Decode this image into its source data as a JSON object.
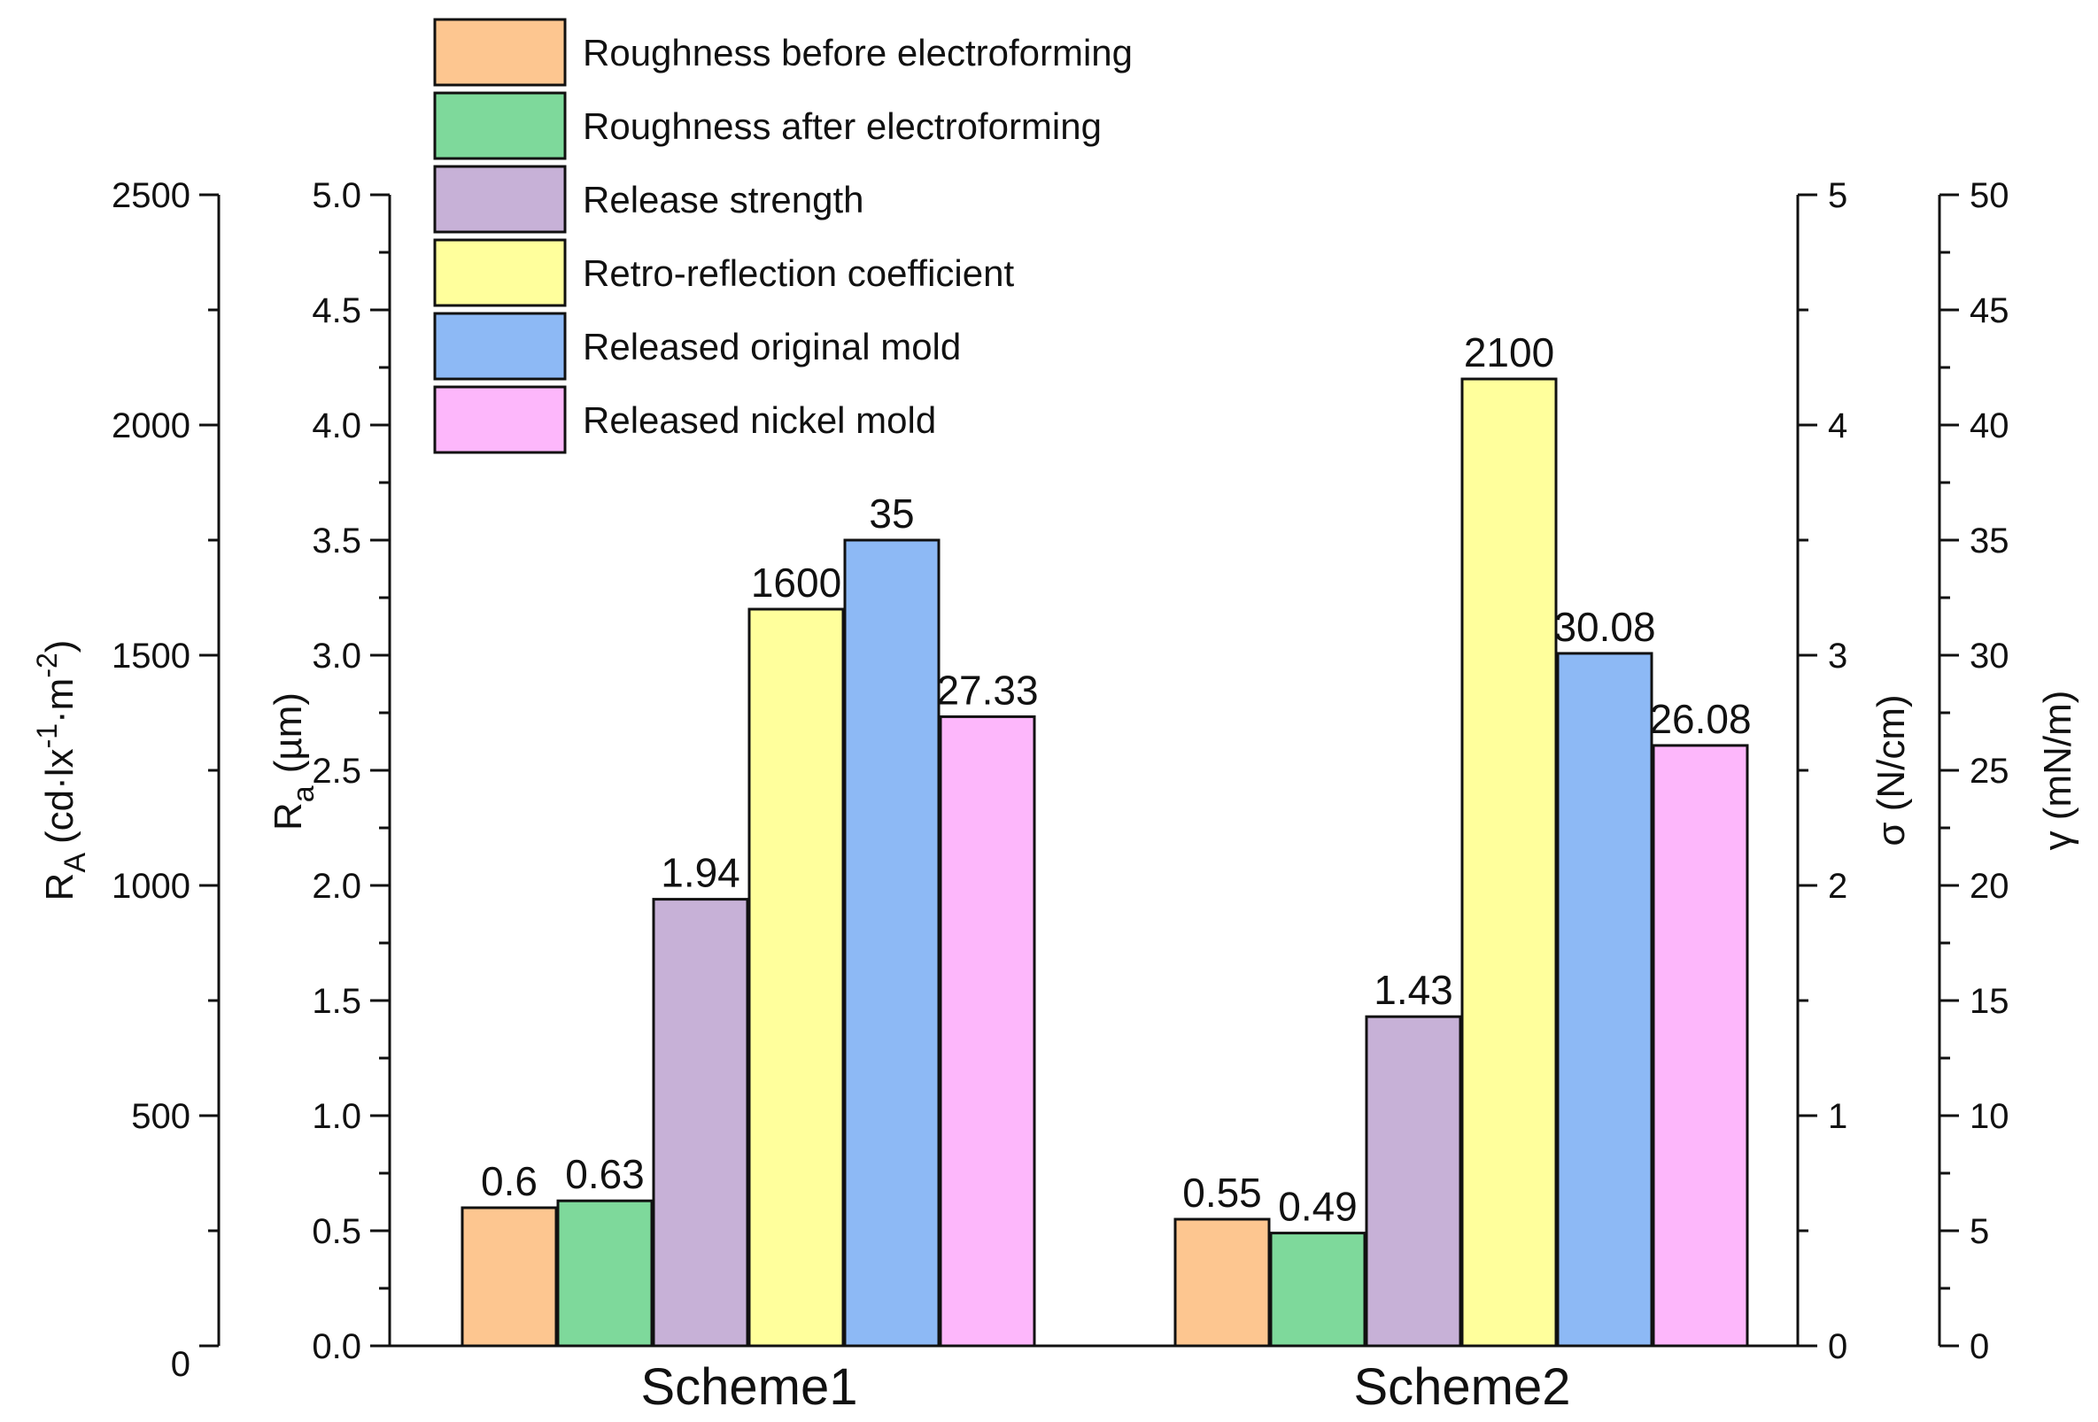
{
  "chart_data": {
    "type": "bar",
    "categories": [
      "Scheme1",
      "Scheme2"
    ],
    "series": [
      {
        "name": "Roughness before electroforming",
        "axis": "Ra",
        "color": "#FDC690",
        "values": [
          0.6,
          0.55
        ],
        "labels": [
          "0.6",
          "0.55"
        ]
      },
      {
        "name": "Roughness after electroforming",
        "axis": "Ra",
        "color": "#7ED99B",
        "values": [
          0.63,
          0.49
        ],
        "labels": [
          "0.63",
          "0.49"
        ]
      },
      {
        "name": "Release strength",
        "axis": "sigma",
        "color": "#C7B1D7",
        "values": [
          1.94,
          1.43
        ],
        "labels": [
          "1.94",
          "1.43"
        ]
      },
      {
        "name": "Retro-reflection coefficient",
        "axis": "RA",
        "color": "#FFFF9C",
        "values": [
          1600,
          2100
        ],
        "labels": [
          "1600",
          "2100"
        ]
      },
      {
        "name": "Released original mold",
        "axis": "gamma",
        "color": "#8DB9F5",
        "values": [
          35,
          30.08
        ],
        "labels": [
          "35",
          "30.08"
        ]
      },
      {
        "name": "Released nickel mold",
        "axis": "gamma",
        "color": "#FDB7FB",
        "values": [
          27.33,
          26.08
        ],
        "labels": [
          "27.33",
          "26.08"
        ]
      }
    ],
    "axes": {
      "RA": {
        "title_main": "R",
        "title_sub": "A",
        "title_unit": "(cd·lx",
        "title_sup1": "-1",
        "title_mid": "·m",
        "title_sup2": "-2",
        "title_close": ")",
        "ylim": [
          0,
          2500
        ],
        "ticks": [
          "0",
          "500",
          "1000",
          "1500",
          "2000",
          "2500"
        ]
      },
      "Ra": {
        "title_main": "R",
        "title_sub": "a",
        "title_unit": "(µm)",
        "ylim": [
          0,
          5
        ],
        "ticks": [
          "0.0",
          "0.5",
          "1.0",
          "1.5",
          "2.0",
          "2.5",
          "3.0",
          "3.5",
          "4.0",
          "4.5",
          "5.0"
        ]
      },
      "sigma": {
        "title": "σ (N/cm)",
        "ylim": [
          0,
          5
        ],
        "ticks": [
          "0",
          "1",
          "2",
          "3",
          "4",
          "5"
        ]
      },
      "gamma": {
        "title": "γ (mN/m)",
        "ylim": [
          0,
          50
        ],
        "ticks": [
          "0",
          "5",
          "10",
          "15",
          "20",
          "25",
          "30",
          "35",
          "40",
          "45",
          "50"
        ]
      }
    },
    "legend_position": "top-left",
    "grid": false
  }
}
